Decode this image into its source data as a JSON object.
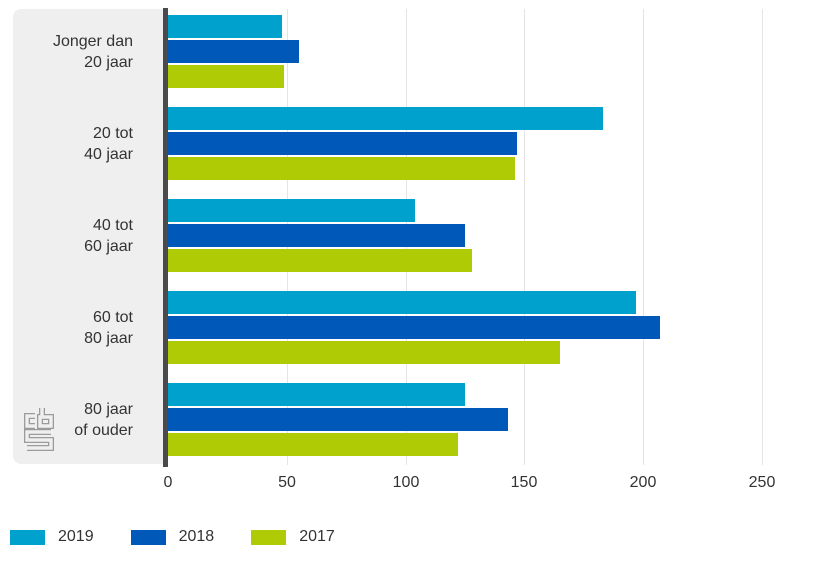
{
  "chart_data": {
    "type": "bar",
    "orientation": "horizontal",
    "title": "",
    "categories": [
      "Jonger dan 20 jaar",
      "20 tot 40 jaar",
      "40 tot 60 jaar",
      "60 tot 80 jaar",
      "80 jaar of ouder"
    ],
    "category_label_lines": [
      [
        "Jonger dan",
        "20 jaar"
      ],
      [
        "20 tot",
        "40 jaar"
      ],
      [
        "40 tot",
        "60 jaar"
      ],
      [
        "60 tot",
        "80 jaar"
      ],
      [
        "80 jaar",
        "of ouder"
      ]
    ],
    "series": [
      {
        "name": "2019",
        "color": "#00a1cd",
        "values": [
          48,
          183,
          104,
          197,
          125
        ]
      },
      {
        "name": "2018",
        "color": "#0058b8",
        "values": [
          55,
          147,
          125,
          207,
          143
        ]
      },
      {
        "name": "2017",
        "color": "#afcb05",
        "values": [
          49,
          146,
          128,
          165,
          122
        ]
      }
    ],
    "x_ticks": [
      0,
      50,
      100,
      150,
      200,
      250
    ],
    "xlim": [
      0,
      262
    ],
    "grid": true,
    "legend_position": "bottom"
  },
  "icons": {
    "logo": "cbs-logo"
  },
  "colors": {
    "background": "#ffffff",
    "panel": "#efefef",
    "axis_line": "#4a4a4c",
    "gridline": "#e4e4e4",
    "text": "#333333",
    "logo": "#9b9b9b"
  }
}
